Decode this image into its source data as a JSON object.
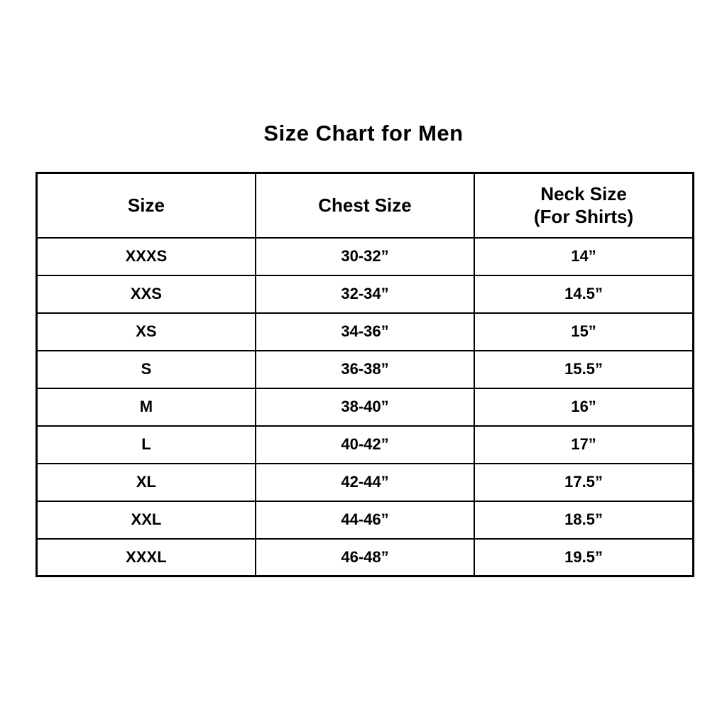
{
  "title": "Size Chart for Men",
  "colors": {
    "background": "#ffffff",
    "text": "#000000",
    "border": "#000000"
  },
  "table": {
    "headers": [
      {
        "label": "Size",
        "sublabel": ""
      },
      {
        "label": "Chest Size",
        "sublabel": ""
      },
      {
        "label": "Neck Size",
        "sublabel": "(For Shirts)"
      }
    ],
    "rows": [
      [
        "XXXS",
        "30-32”",
        "14”"
      ],
      [
        "XXS",
        "32-34”",
        "14.5”"
      ],
      [
        "XS",
        "34-36”",
        "15”"
      ],
      [
        "S",
        "36-38”",
        "15.5”"
      ],
      [
        "M",
        "38-40”",
        "16”"
      ],
      [
        "L",
        "40-42”",
        "17”"
      ],
      [
        "XL",
        "42-44”",
        "17.5”"
      ],
      [
        "XXL",
        "44-46”",
        "18.5”"
      ],
      [
        "XXXL",
        "46-48”",
        "19.5”"
      ]
    ]
  },
  "chart_data": {
    "type": "table",
    "title": "Size Chart for Men",
    "columns": [
      "Size",
      "Chest Size",
      "Neck Size (For Shirts)"
    ],
    "rows": [
      {
        "size": "XXXS",
        "chest_size": "30-32”",
        "neck_size": "14”"
      },
      {
        "size": "XXS",
        "chest_size": "32-34”",
        "neck_size": "14.5”"
      },
      {
        "size": "XS",
        "chest_size": "34-36”",
        "neck_size": "15”"
      },
      {
        "size": "S",
        "chest_size": "36-38”",
        "neck_size": "15.5”"
      },
      {
        "size": "M",
        "chest_size": "38-40”",
        "neck_size": "16”"
      },
      {
        "size": "L",
        "chest_size": "40-42”",
        "neck_size": "17”"
      },
      {
        "size": "XL",
        "chest_size": "42-44”",
        "neck_size": "17.5”"
      },
      {
        "size": "XXL",
        "chest_size": "44-46”",
        "neck_size": "18.5”"
      },
      {
        "size": "XXXL",
        "chest_size": "46-48”",
        "neck_size": "19.5”"
      }
    ]
  }
}
